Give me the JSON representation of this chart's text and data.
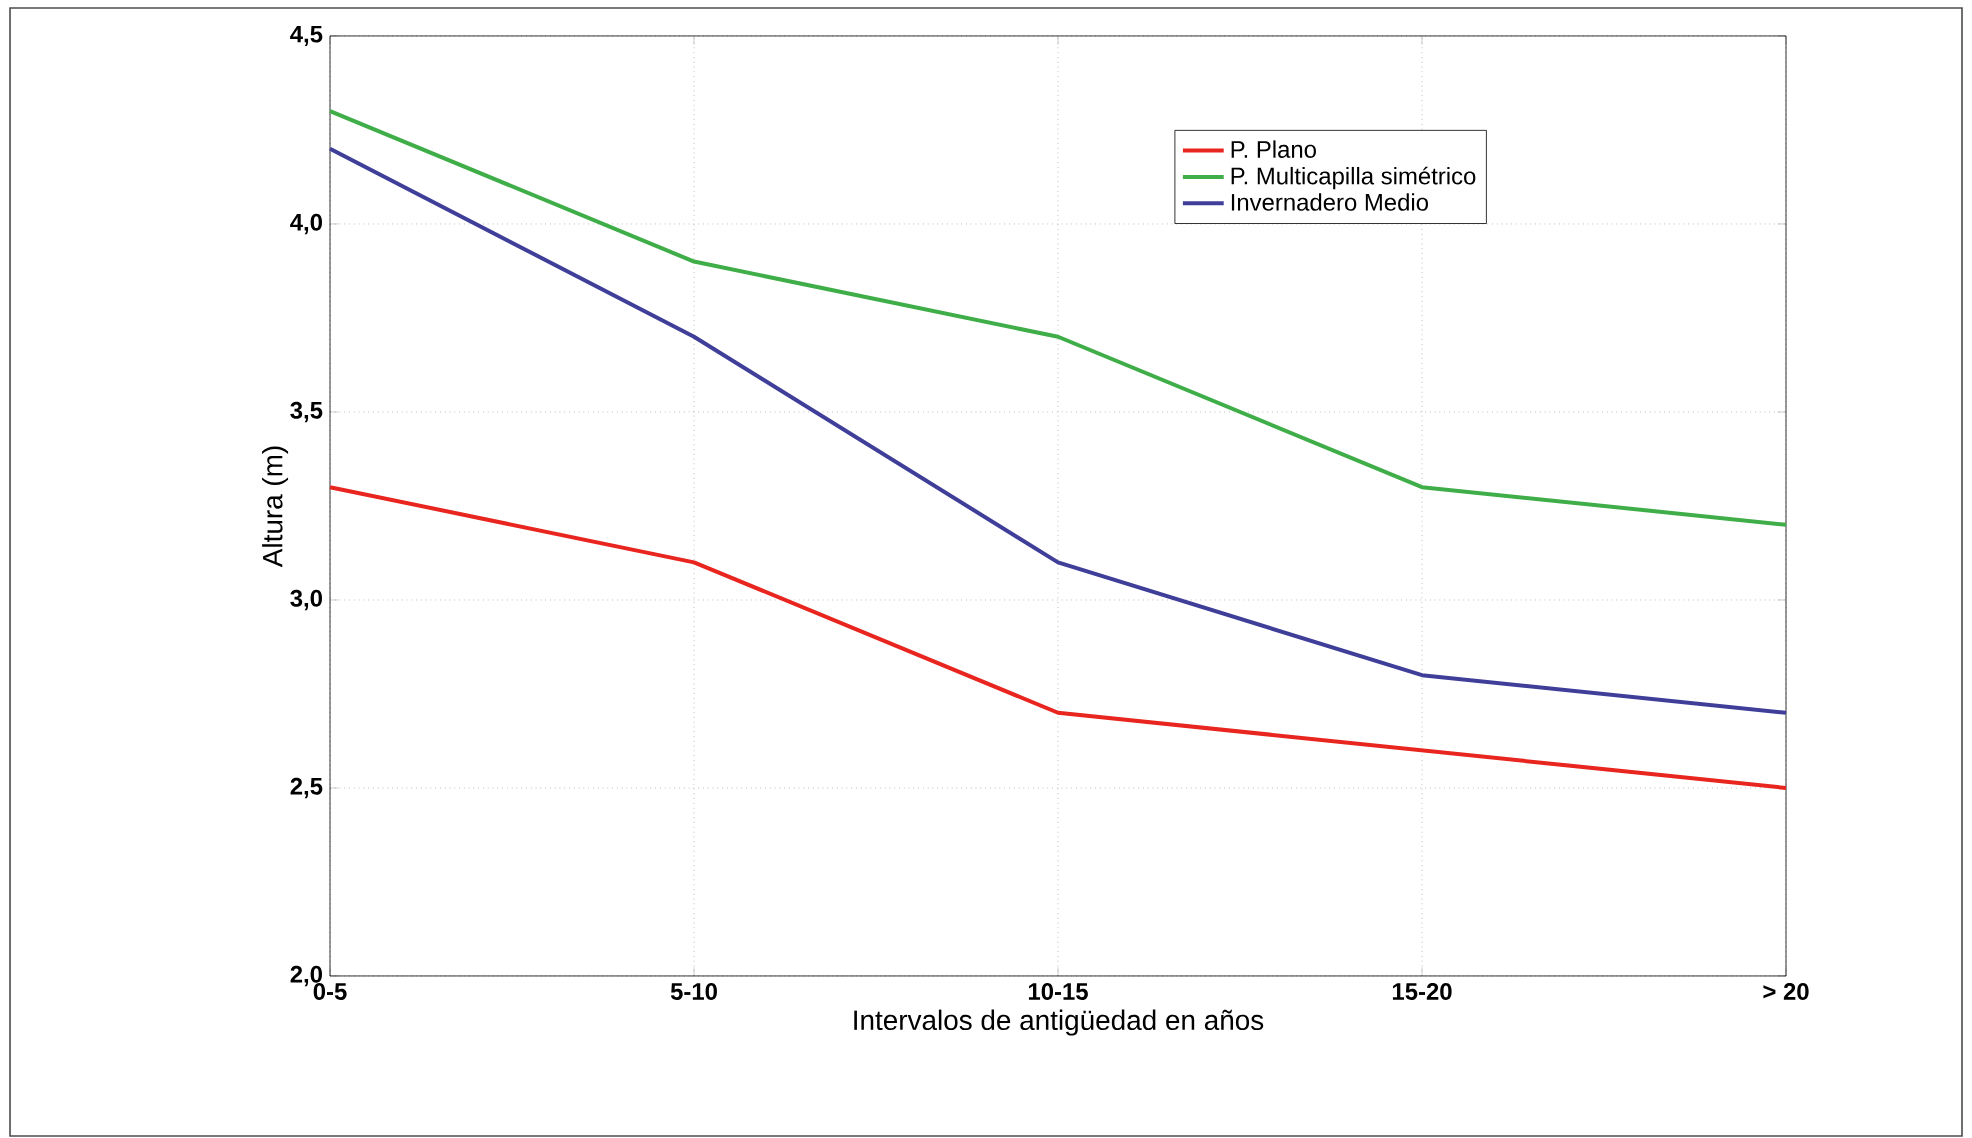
{
  "chart_data": {
    "type": "line",
    "xlabel": "Intervalos de antigüedad en años",
    "ylabel": "Altura (m)",
    "categories": [
      "0-5",
      "5-10",
      "10-15",
      "15-20",
      "> 20"
    ],
    "series": [
      {
        "name": "P. Plano",
        "color": "#e8251e",
        "values": [
          3.3,
          3.1,
          2.7,
          2.6,
          2.5
        ]
      },
      {
        "name": "P. Multicapilla simétrico",
        "color": "#3fae49",
        "values": [
          4.3,
          3.9,
          3.7,
          3.3,
          3.2
        ]
      },
      {
        "name": "Invernadero Medio",
        "color": "#3f3f9a",
        "values": [
          4.2,
          3.7,
          3.1,
          2.8,
          2.7
        ]
      }
    ],
    "ylim": [
      2.0,
      4.5
    ],
    "yticks": [
      {
        "value": 2.0,
        "label": "2,0"
      },
      {
        "value": 2.5,
        "label": "2,5"
      },
      {
        "value": 3.0,
        "label": "3,0"
      },
      {
        "value": 3.5,
        "label": "3,5"
      },
      {
        "value": 4.0,
        "label": "4,0"
      },
      {
        "value": 4.5,
        "label": "4,5"
      }
    ],
    "grid": true,
    "legend": "top right",
    "marker": "none",
    "line_style": "solid"
  }
}
